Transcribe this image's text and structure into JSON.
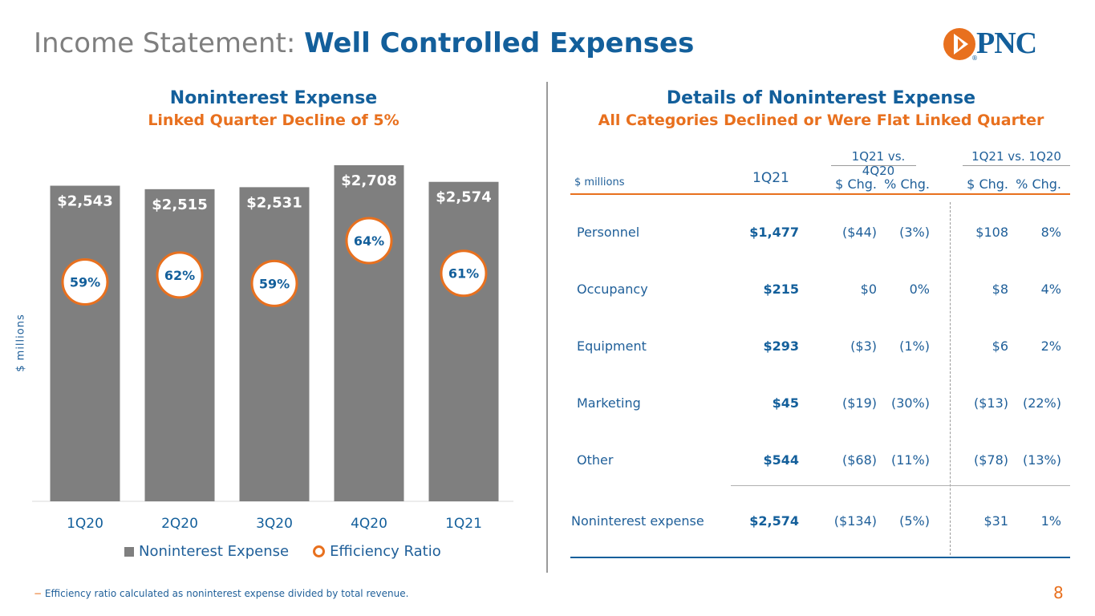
{
  "header": {
    "title_prefix": "Income Statement:",
    "title_main": "Well Controlled Expenses",
    "logo_text": "PNC",
    "logo_mark": "®"
  },
  "left": {
    "heading": "Noninterest Expense",
    "subheading": "Linked Quarter Decline of 5%",
    "ylabel": "$ millions",
    "legend": [
      "Noninterest Expense",
      "Efficiency Ratio"
    ]
  },
  "chart_data": {
    "type": "bar",
    "categories": [
      "1Q20",
      "2Q20",
      "3Q20",
      "4Q20",
      "1Q21"
    ],
    "series": [
      {
        "name": "Noninterest Expense",
        "values": [
          2543,
          2515,
          2531,
          2708,
          2574
        ],
        "labels": [
          "$2,543",
          "$2,515",
          "$2,531",
          "$2,708",
          "$2,574"
        ]
      },
      {
        "name": "Efficiency Ratio",
        "values": [
          59,
          62,
          59,
          64,
          61
        ],
        "labels": [
          "59%",
          "62%",
          "59%",
          "64%",
          "61%"
        ]
      }
    ],
    "ylabel": "$ millions",
    "ylim": [
      0,
      2708
    ],
    "colors": {
      "bar": "#7f7f7f",
      "ring": "#e8701e",
      "text": "#135f9b"
    }
  },
  "right": {
    "heading": "Details of Noninterest Expense",
    "subheading": "All Categories Declined or Were Flat Linked Quarter",
    "group1": "1Q21 vs. 4Q20",
    "group2": "1Q21 vs. 1Q20",
    "col_units": "$ millions",
    "col_period": "1Q21",
    "col_dchg": "$ Chg.",
    "col_pchg": "% Chg.",
    "rows": [
      {
        "name": "Personnel",
        "value": "$1,477",
        "lq_d": "($44)",
        "lq_p": "(3%)",
        "ya_d": "$108",
        "ya_p": "8%"
      },
      {
        "name": "Occupancy",
        "value": "$215",
        "lq_d": "$0",
        "lq_p": "0%",
        "ya_d": "$8",
        "ya_p": "4%"
      },
      {
        "name": "Equipment",
        "value": "$293",
        "lq_d": "($3)",
        "lq_p": "(1%)",
        "ya_d": "$6",
        "ya_p": "2%"
      },
      {
        "name": "Marketing",
        "value": "$45",
        "lq_d": "($19)",
        "lq_p": "(30%)",
        "ya_d": "($13)",
        "ya_p": "(22%)"
      },
      {
        "name": "Other",
        "value": "$544",
        "lq_d": "($68)",
        "lq_p": "(11%)",
        "ya_d": "($78)",
        "ya_p": "(13%)"
      },
      {
        "name": "Noninterest expense",
        "value": "$2,574",
        "lq_d": "($134)",
        "lq_p": "(5%)",
        "ya_d": "$31",
        "ya_p": "1%"
      }
    ]
  },
  "footer": {
    "footnote_mark": "−",
    "footnote": "Efficiency ratio calculated as noninterest expense divided by total revenue.",
    "page": "8"
  }
}
